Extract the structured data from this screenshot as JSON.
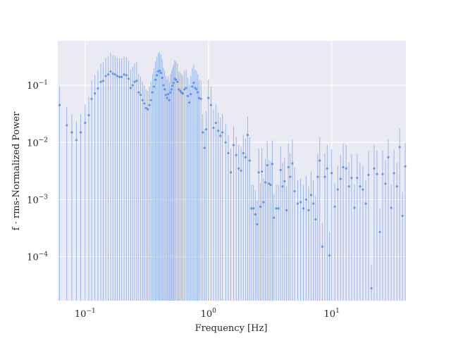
{
  "chart_data": {
    "type": "scatter",
    "title": "",
    "xlabel": "Frequency [Hz]",
    "ylabel": "f · rms-Normalized Power",
    "xscale": "log",
    "yscale": "log",
    "xlim": [
      0.06,
      40
    ],
    "ylim": [
      1.7e-05,
      0.6
    ],
    "grid": true,
    "colors": {
      "background": "#eaeaf2",
      "grid": "#ffffff",
      "marker": "#6495ed",
      "errorbar": "#8fb0f0"
    },
    "x_ticks": [
      {
        "value": 0.1,
        "base": "10",
        "exp": "−1"
      },
      {
        "value": 1,
        "base": "10",
        "exp": "0"
      },
      {
        "value": 10,
        "base": "10",
        "exp": "1"
      }
    ],
    "y_ticks": [
      {
        "value": 0.1,
        "base": "10",
        "exp": "−1"
      },
      {
        "value": 0.01,
        "base": "10",
        "exp": "−2"
      },
      {
        "value": 0.001,
        "base": "10",
        "exp": "−3"
      },
      {
        "value": 0.0001,
        "base": "10",
        "exp": "−4"
      }
    ],
    "series": [
      {
        "points": [
          [
            0.062,
            0.045
          ],
          [
            0.071,
            0.02
          ],
          [
            0.078,
            0.015
          ],
          [
            0.085,
            0.011
          ],
          [
            0.092,
            0.015
          ],
          [
            0.1,
            0.022
          ],
          [
            0.107,
            0.03
          ],
          [
            0.113,
            0.058
          ],
          [
            0.12,
            0.072
          ],
          [
            0.127,
            0.088
          ],
          [
            0.134,
            0.115
          ],
          [
            0.14,
            0.12
          ],
          [
            0.147,
            0.145
          ],
          [
            0.154,
            0.155
          ],
          [
            0.161,
            0.175
          ],
          [
            0.168,
            0.16
          ],
          [
            0.175,
            0.155
          ],
          [
            0.182,
            0.145
          ],
          [
            0.19,
            0.14
          ],
          [
            0.198,
            0.14
          ],
          [
            0.207,
            0.155
          ],
          [
            0.216,
            0.15
          ],
          [
            0.225,
            0.13
          ],
          [
            0.234,
            0.09
          ],
          [
            0.243,
            0.1
          ],
          [
            0.252,
            0.115
          ],
          [
            0.262,
            0.12
          ],
          [
            0.272,
            0.075
          ],
          [
            0.282,
            0.068
          ],
          [
            0.292,
            0.055
          ],
          [
            0.302,
            0.048
          ],
          [
            0.312,
            0.04
          ],
          [
            0.322,
            0.038
          ],
          [
            0.332,
            0.045
          ],
          [
            0.342,
            0.055
          ],
          [
            0.352,
            0.075
          ],
          [
            0.362,
            0.095
          ],
          [
            0.372,
            0.125
          ],
          [
            0.382,
            0.15
          ],
          [
            0.392,
            0.175
          ],
          [
            0.402,
            0.18
          ],
          [
            0.412,
            0.165
          ],
          [
            0.422,
            0.135
          ],
          [
            0.432,
            0.1
          ],
          [
            0.442,
            0.085
          ],
          [
            0.452,
            0.068
          ],
          [
            0.462,
            0.06
          ],
          [
            0.472,
            0.07
          ],
          [
            0.482,
            0.055
          ],
          [
            0.492,
            0.075
          ],
          [
            0.502,
            0.085
          ],
          [
            0.512,
            0.098
          ],
          [
            0.522,
            0.11
          ],
          [
            0.532,
            0.13
          ],
          [
            0.545,
            0.125
          ],
          [
            0.56,
            0.115
          ],
          [
            0.575,
            0.085
          ],
          [
            0.59,
            0.08
          ],
          [
            0.605,
            0.075
          ],
          [
            0.62,
            0.072
          ],
          [
            0.64,
            0.085
          ],
          [
            0.66,
            0.09
          ],
          [
            0.68,
            0.065
          ],
          [
            0.7,
            0.05
          ],
          [
            0.72,
            0.07
          ],
          [
            0.74,
            0.095
          ],
          [
            0.76,
            0.11
          ],
          [
            0.78,
            0.09
          ],
          [
            0.8,
            0.085
          ],
          [
            0.82,
            0.075
          ],
          [
            0.84,
            0.06
          ],
          [
            0.87,
            0.058
          ],
          [
            0.9,
            0.015
          ],
          [
            0.93,
            0.008
          ],
          [
            0.96,
            0.017
          ],
          [
            1.0,
            0.06
          ],
          [
            1.05,
            0.045
          ],
          [
            1.1,
            0.018
          ],
          [
            1.15,
            0.022
          ],
          [
            1.2,
            0.016
          ],
          [
            1.25,
            0.013
          ],
          [
            1.3,
            0.015
          ],
          [
            1.38,
            0.01
          ],
          [
            1.45,
            0.0065
          ],
          [
            1.52,
            0.003
          ],
          [
            1.6,
            0.009
          ],
          [
            1.68,
            0.006
          ],
          [
            1.76,
            0.0035
          ],
          [
            1.84,
            0.0032
          ],
          [
            1.92,
            0.0065
          ],
          [
            2.0,
            0.0055
          ],
          [
            2.08,
            0.0135
          ],
          [
            2.16,
            0.0048
          ],
          [
            2.24,
            0.0007
          ],
          [
            2.32,
            0.0007
          ],
          [
            2.4,
            0.00055
          ],
          [
            2.48,
            0.00037
          ],
          [
            2.56,
            0.003
          ],
          [
            2.64,
            0.00075
          ],
          [
            2.72,
            0.0031
          ],
          [
            2.8,
            0.0009
          ],
          [
            2.9,
            0.002
          ],
          [
            3.0,
            0.004
          ],
          [
            3.1,
            0.0019
          ],
          [
            3.2,
            0.0018
          ],
          [
            3.3,
            0.0042
          ],
          [
            3.4,
            0.00048
          ],
          [
            3.55,
            0.0007
          ],
          [
            3.7,
            0.0007
          ],
          [
            3.85,
            0.0033
          ],
          [
            4.0,
            0.0017
          ],
          [
            4.15,
            0.0021
          ],
          [
            4.3,
            0.00065
          ],
          [
            4.45,
            0.0037
          ],
          [
            4.6,
            0.0025
          ],
          [
            4.8,
            0.0043
          ],
          [
            5.0,
            0.0014
          ],
          [
            5.3,
            0.00085
          ],
          [
            5.6,
            0.0009
          ],
          [
            5.9,
            0.0007
          ],
          [
            6.2,
            0.001
          ],
          [
            6.5,
            0.00065
          ],
          [
            6.8,
            0.0012
          ],
          [
            7.1,
            0.00085
          ],
          [
            7.4,
            0.00045
          ],
          [
            7.7,
            0.0025
          ],
          [
            8.0,
            0.0048
          ],
          [
            8.4,
            0.00015
          ],
          [
            8.8,
            0.0025
          ],
          [
            9.2,
            0.0035
          ],
          [
            9.6,
            0.000105
          ],
          [
            10.0,
            0.0029
          ],
          [
            10.6,
            0.00075
          ],
          [
            11.2,
            0.0015
          ],
          [
            11.8,
            0.0023
          ],
          [
            12.4,
            0.0037
          ],
          [
            13.1,
            0.0035
          ],
          [
            13.8,
            0.0017
          ],
          [
            14.5,
            0.0024
          ],
          [
            15.3,
            0.00072
          ],
          [
            16.1,
            0.0024
          ],
          [
            17.0,
            0.0017
          ],
          [
            17.9,
            0.0015
          ],
          [
            18.9,
            0.00085
          ],
          [
            19.9,
            0.0027
          ],
          [
            21.0,
            2.8e-05
          ],
          [
            22.1,
            0.0035
          ],
          [
            23.3,
            0.0028
          ],
          [
            24.6,
            0.00027
          ],
          [
            25.9,
            0.0028
          ],
          [
            27.3,
            0.0019
          ],
          [
            28.8,
            0.0055
          ],
          [
            30.4,
            0.00072
          ],
          [
            32.0,
            0.0029
          ],
          [
            33.8,
            0.0017
          ],
          [
            35.6,
            0.0083
          ],
          [
            37.5,
            0.00052
          ],
          [
            39.5,
            0.0038
          ]
        ]
      }
    ]
  }
}
